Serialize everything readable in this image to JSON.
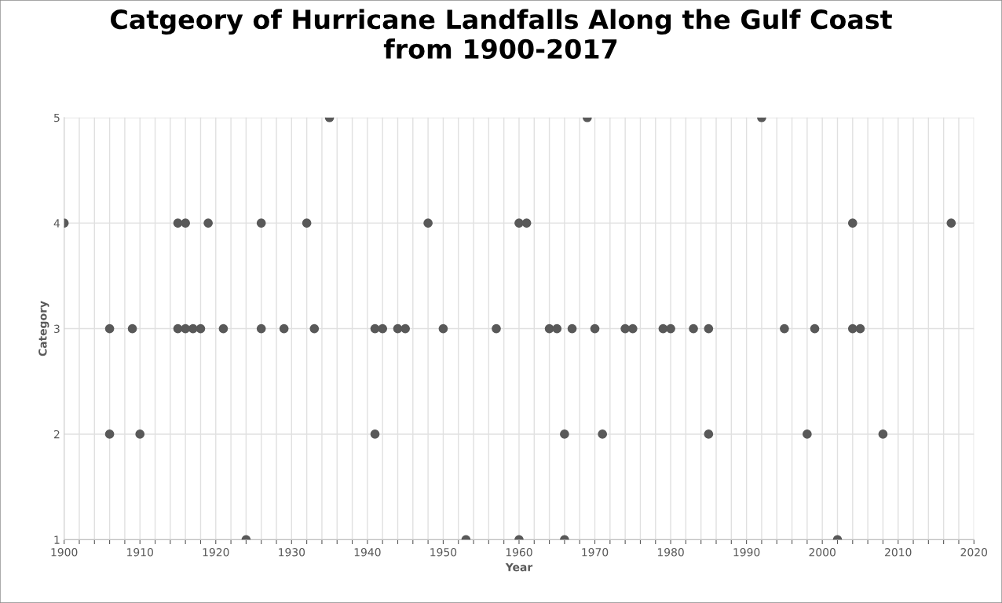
{
  "chart_data": {
    "type": "scatter",
    "title": "Catgeory of Hurricane Landfalls Along the Gulf Coast\nfrom 1900-2017",
    "xlabel": "Year",
    "ylabel": "Category",
    "series": [
      {
        "color": "#595959",
        "x": [
          1900,
          1915,
          1916,
          1919,
          1926,
          1932,
          1948,
          1960,
          1961,
          2004,
          2017,
          1935,
          1969,
          1992,
          1906,
          1909,
          1915,
          1916,
          1917,
          1918,
          1921,
          1926,
          1929,
          1933,
          1941,
          1942,
          1944,
          1945,
          1950,
          1957,
          1964,
          1965,
          1967,
          1970,
          1974,
          1975,
          1979,
          1980,
          1983,
          1985,
          1995,
          1999,
          2004,
          2005,
          1906,
          1910,
          1941,
          1966,
          1971,
          1985,
          1998,
          2008,
          1924,
          1953,
          1960,
          1966,
          2002
        ],
        "values": [
          4,
          4,
          4,
          4,
          4,
          4,
          4,
          4,
          4,
          4,
          4,
          5,
          5,
          5,
          3,
          3,
          3,
          3,
          3,
          3,
          3,
          3,
          3,
          3,
          3,
          3,
          3,
          3,
          3,
          3,
          3,
          3,
          3,
          3,
          3,
          3,
          3,
          3,
          3,
          3,
          3,
          3,
          3,
          3,
          2,
          2,
          2,
          2,
          2,
          2,
          2,
          2,
          1,
          1,
          1,
          1,
          1
        ]
      }
    ],
    "xlim": [
      1900,
      2020
    ],
    "xticks": [
      1900,
      {
        "value": 1902,
        "label": null
      },
      {
        "value": 1904,
        "label": null
      },
      {
        "value": 1906,
        "label": null
      },
      {
        "value": 1908,
        "label": null
      },
      1910,
      {
        "value": 1912,
        "label": null
      },
      {
        "value": 1914,
        "label": null
      },
      {
        "value": 1916,
        "label": null
      },
      {
        "value": 1918,
        "label": null
      },
      1920,
      {
        "value": 1922,
        "label": null
      },
      {
        "value": 1924,
        "label": null
      },
      {
        "value": 1926,
        "label": null
      },
      {
        "value": 1928,
        "label": null
      },
      1930,
      {
        "value": 1932,
        "label": null
      },
      {
        "value": 1934,
        "label": null
      },
      {
        "value": 1936,
        "label": null
      },
      {
        "value": 1938,
        "label": null
      },
      1940,
      {
        "value": 1942,
        "label": null
      },
      {
        "value": 1944,
        "label": null
      },
      {
        "value": 1946,
        "label": null
      },
      {
        "value": 1948,
        "label": null
      },
      1950,
      {
        "value": 1952,
        "label": null
      },
      {
        "value": 1954,
        "label": null
      },
      {
        "value": 1956,
        "label": null
      },
      {
        "value": 1958,
        "label": null
      },
      1960,
      {
        "value": 1962,
        "label": null
      },
      {
        "value": 1964,
        "label": null
      },
      {
        "value": 1966,
        "label": null
      },
      {
        "value": 1968,
        "label": null
      },
      1970,
      {
        "value": 1972,
        "label": null
      },
      {
        "value": 1974,
        "label": null
      },
      {
        "value": 1976,
        "label": null
      },
      {
        "value": 1978,
        "label": null
      },
      1980,
      {
        "value": 1982,
        "label": null
      },
      {
        "value": 1984,
        "label": null
      },
      {
        "value": 1986,
        "label": null
      },
      {
        "value": 1988,
        "label": null
      },
      1990,
      {
        "value": 1992,
        "label": null
      },
      {
        "value": 1994,
        "label": null
      },
      {
        "value": 1996,
        "label": null
      },
      {
        "value": 1998,
        "label": null
      },
      2000,
      {
        "value": 2002,
        "label": null
      },
      {
        "value": 2004,
        "label": null
      },
      {
        "value": 2006,
        "label": null
      },
      {
        "value": 2008,
        "label": null
      },
      2010,
      {
        "value": 2012,
        "label": null
      },
      {
        "value": 2014,
        "label": null
      },
      {
        "value": 2016,
        "label": null
      },
      {
        "value": 2018,
        "label": null
      },
      2020
    ],
    "ylim": [
      1,
      5
    ],
    "yticks": [
      1,
      2,
      3,
      4,
      5
    ],
    "grid": true,
    "marker": "circle",
    "legend": false
  }
}
